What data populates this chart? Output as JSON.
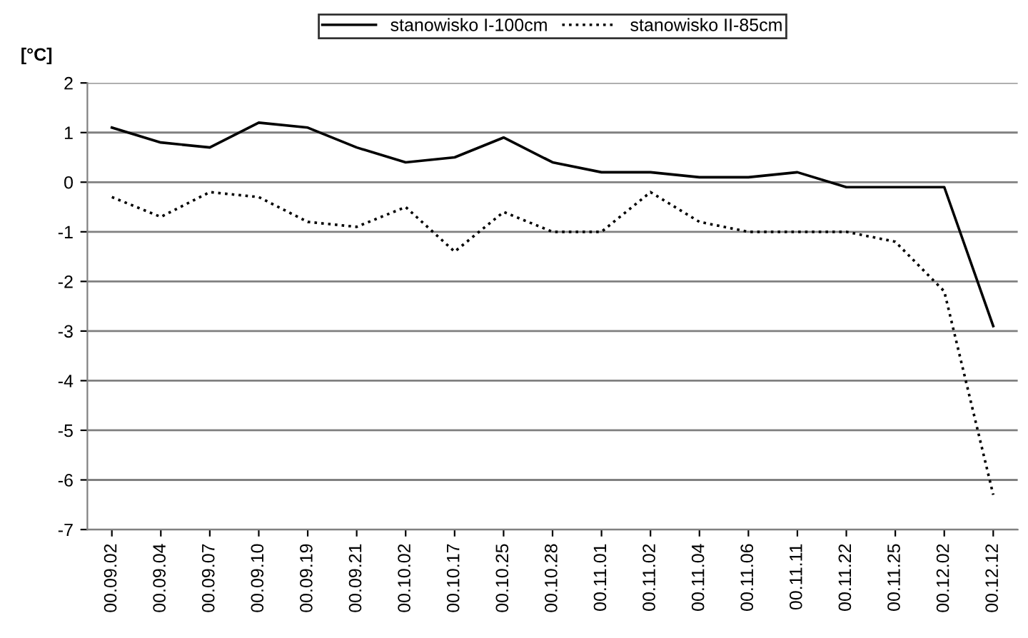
{
  "chart_data": {
    "type": "line",
    "ylabel": "[°C]",
    "categories": [
      "00.09.02",
      "00.09.04",
      "00.09.07",
      "00.09.10",
      "00.09.19",
      "00.09.21",
      "00.10.02",
      "00.10.17",
      "00.10.25",
      "00.10.28",
      "00.11.01",
      "00.11.02",
      "00.11.04",
      "00.11.06",
      "00.11.11",
      "00.11.22",
      "00.11.25",
      "00.12.02",
      "00.12.12"
    ],
    "series": [
      {
        "name": "stanowisko I-100cm",
        "color": "#000000",
        "line_style": "solid",
        "values": [
          1.1,
          0.8,
          0.7,
          1.2,
          1.1,
          0.7,
          0.4,
          0.5,
          0.9,
          0.4,
          0.2,
          0.2,
          0.1,
          0.1,
          0.2,
          -0.1,
          -0.1,
          -0.1,
          -2.9
        ]
      },
      {
        "name": "stanowisko II-85cm",
        "color": "#000000",
        "line_style": "dotted",
        "values": [
          -0.3,
          -0.7,
          -0.2,
          -0.3,
          -0.8,
          -0.9,
          -0.5,
          -1.4,
          -0.6,
          -1.0,
          -1.0,
          -0.2,
          -0.8,
          -1.0,
          -1.0,
          -1.0,
          -1.2,
          -2.2,
          -6.3
        ]
      }
    ],
    "ylim": [
      -7,
      2
    ],
    "yticks": [
      -7,
      -6,
      -5,
      -4,
      -3,
      -2,
      -1,
      0,
      1,
      2
    ],
    "grid": "y",
    "legend": "top",
    "marker": "none"
  }
}
